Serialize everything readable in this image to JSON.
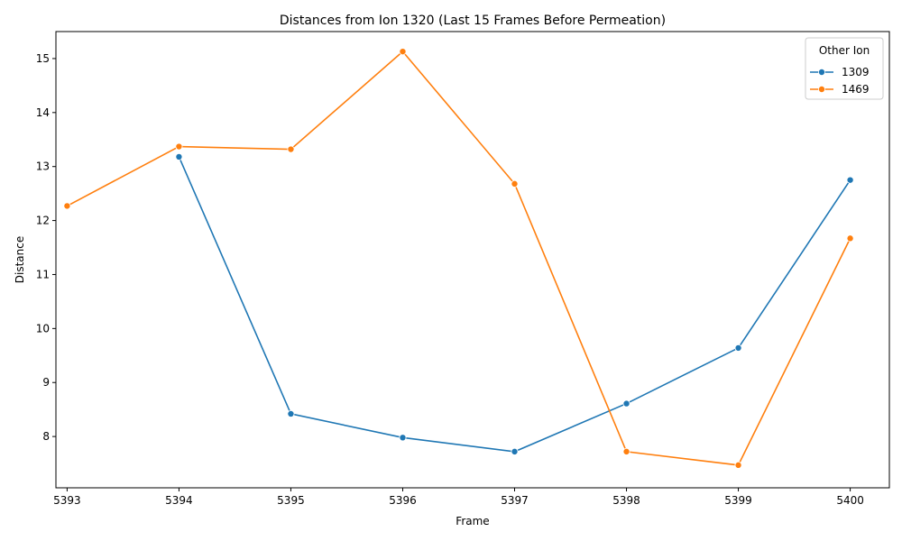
{
  "chart_data": {
    "type": "line",
    "title": "Distances from Ion 1320 (Last 15 Frames Before Permeation)",
    "xlabel": "Frame",
    "ylabel": "Distance",
    "xlim": [
      5392.9,
      5400.35
    ],
    "ylim": [
      7.05,
      15.5
    ],
    "x_ticks": [
      5393,
      5394,
      5395,
      5396,
      5397,
      5398,
      5399,
      5400
    ],
    "y_ticks": [
      8,
      9,
      10,
      11,
      12,
      13,
      14,
      15
    ],
    "grid": false,
    "legend": {
      "title": "Other Ion",
      "placement": "top-right"
    },
    "series": [
      {
        "name": "1309",
        "color": "#1f77b4",
        "x": [
          5394,
          5395,
          5396,
          5397,
          5398,
          5399,
          5400
        ],
        "y": [
          13.18,
          8.42,
          7.98,
          7.72,
          8.61,
          9.64,
          12.75
        ]
      },
      {
        "name": "1469",
        "color": "#ff7f0e",
        "x": [
          5393,
          5394,
          5395,
          5396,
          5397,
          5398,
          5399,
          5400
        ],
        "y": [
          12.27,
          13.37,
          13.32,
          15.13,
          12.68,
          7.72,
          7.47,
          11.67
        ]
      }
    ]
  }
}
